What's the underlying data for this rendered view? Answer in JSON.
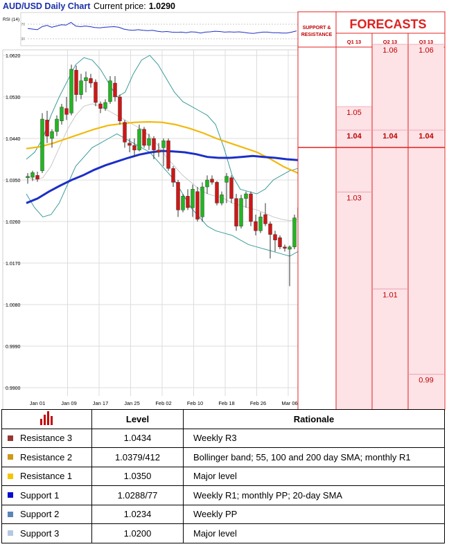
{
  "chart_title": "AUD/USD Daily Chart",
  "price_label": "Current price:",
  "price_value": "1.0290",
  "rsi_label": "RSI (14)",
  "rsi_ticks": [
    "70",
    "30"
  ],
  "chart_data": [
    {
      "type": "candlestick",
      "title": "AUD/USD Daily Chart",
      "ylim": [
        0.9875,
        1.0625
      ],
      "y_ticks": [
        "1.0620",
        "1.0530",
        "1.0440",
        "1.0350",
        "1.0260",
        "1.0170",
        "1.0080",
        "0.9990",
        "0.9900"
      ],
      "x_ticks": [
        "Jan 01",
        "Jan 09",
        "Jan 17",
        "Jan 25",
        "Feb 02",
        "Feb 10",
        "Feb 18",
        "Feb 26",
        "Mar 06"
      ],
      "grid": true,
      "candles": [
        {
          "o": 1.0355,
          "h": 1.0365,
          "l": 1.0342,
          "c": 1.0358
        },
        {
          "o": 1.0356,
          "h": 1.037,
          "l": 1.0348,
          "c": 1.0366
        },
        {
          "o": 1.036,
          "h": 1.0368,
          "l": 1.0346,
          "c": 1.0352
        },
        {
          "o": 1.037,
          "h": 1.0495,
          "l": 1.0365,
          "c": 1.0482
        },
        {
          "o": 1.048,
          "h": 1.05,
          "l": 1.043,
          "c": 1.0445
        },
        {
          "o": 1.044,
          "h": 1.046,
          "l": 1.042,
          "c": 1.0455
        },
        {
          "o": 1.0455,
          "h": 1.049,
          "l": 1.0445,
          "c": 1.0482
        },
        {
          "o": 1.0478,
          "h": 1.0515,
          "l": 1.047,
          "c": 1.0508
        },
        {
          "o": 1.0505,
          "h": 1.053,
          "l": 1.048,
          "c": 1.0492
        },
        {
          "o": 1.0495,
          "h": 1.06,
          "l": 1.049,
          "c": 1.059
        },
        {
          "o": 1.0588,
          "h": 1.0598,
          "l": 1.052,
          "c": 1.0535
        },
        {
          "o": 1.0535,
          "h": 1.058,
          "l": 1.0525,
          "c": 1.0565
        },
        {
          "o": 1.0565,
          "h": 1.0585,
          "l": 1.054,
          "c": 1.0572
        },
        {
          "o": 1.057,
          "h": 1.058,
          "l": 1.055,
          "c": 1.056
        },
        {
          "o": 1.0562,
          "h": 1.0568,
          "l": 1.051,
          "c": 1.0518
        },
        {
          "o": 1.0515,
          "h": 1.052,
          "l": 1.0495,
          "c": 1.0505
        },
        {
          "o": 1.0505,
          "h": 1.0525,
          "l": 1.05,
          "c": 1.0518
        },
        {
          "o": 1.052,
          "h": 1.0575,
          "l": 1.0515,
          "c": 1.0565
        },
        {
          "o": 1.056,
          "h": 1.0575,
          "l": 1.052,
          "c": 1.053
        },
        {
          "o": 1.053,
          "h": 1.0535,
          "l": 1.047,
          "c": 1.0478
        },
        {
          "o": 1.0475,
          "h": 1.048,
          "l": 1.042,
          "c": 1.0432
        },
        {
          "o": 1.043,
          "h": 1.044,
          "l": 1.041,
          "c": 1.0425
        },
        {
          "o": 1.0425,
          "h": 1.044,
          "l": 1.04,
          "c": 1.0415
        },
        {
          "o": 1.0415,
          "h": 1.047,
          "l": 1.0412,
          "c": 1.046
        },
        {
          "o": 1.046,
          "h": 1.0465,
          "l": 1.042,
          "c": 1.0425
        },
        {
          "o": 1.0425,
          "h": 1.045,
          "l": 1.0415,
          "c": 1.044
        },
        {
          "o": 1.044,
          "h": 1.0445,
          "l": 1.0395,
          "c": 1.0415
        },
        {
          "o": 1.0415,
          "h": 1.043,
          "l": 1.04,
          "c": 1.041
        },
        {
          "o": 1.042,
          "h": 1.044,
          "l": 1.038,
          "c": 1.0435
        },
        {
          "o": 1.0435,
          "h": 1.044,
          "l": 1.037,
          "c": 1.0375
        },
        {
          "o": 1.0375,
          "h": 1.038,
          "l": 1.0335,
          "c": 1.0345
        },
        {
          "o": 1.0345,
          "h": 1.035,
          "l": 1.027,
          "c": 1.0285
        },
        {
          "o": 1.0285,
          "h": 1.032,
          "l": 1.028,
          "c": 1.0315
        },
        {
          "o": 1.0315,
          "h": 1.033,
          "l": 1.0285,
          "c": 1.029
        },
        {
          "o": 1.029,
          "h": 1.034,
          "l": 1.027,
          "c": 1.033
        },
        {
          "o": 1.0325,
          "h": 1.0335,
          "l": 1.026,
          "c": 1.0265
        },
        {
          "o": 1.027,
          "h": 1.0345,
          "l": 1.026,
          "c": 1.0335
        },
        {
          "o": 1.0335,
          "h": 1.036,
          "l": 1.032,
          "c": 1.035
        },
        {
          "o": 1.0352,
          "h": 1.036,
          "l": 1.034,
          "c": 1.0345
        },
        {
          "o": 1.0345,
          "h": 1.0348,
          "l": 1.0295,
          "c": 1.03
        },
        {
          "o": 1.03,
          "h": 1.0325,
          "l": 1.0295,
          "c": 1.0318
        },
        {
          "o": 1.0345,
          "h": 1.0365,
          "l": 1.03,
          "c": 1.0358
        },
        {
          "o": 1.0355,
          "h": 1.036,
          "l": 1.03,
          "c": 1.031
        },
        {
          "o": 1.031,
          "h": 1.032,
          "l": 1.024,
          "c": 1.025
        },
        {
          "o": 1.025,
          "h": 1.0318,
          "l": 1.0245,
          "c": 1.031
        },
        {
          "o": 1.031,
          "h": 1.0325,
          "l": 1.029,
          "c": 1.032
        },
        {
          "o": 1.032,
          "h": 1.0325,
          "l": 1.025,
          "c": 1.026
        },
        {
          "o": 1.026,
          "h": 1.0275,
          "l": 1.023,
          "c": 1.024
        },
        {
          "o": 1.024,
          "h": 1.028,
          "l": 1.0235,
          "c": 1.027
        },
        {
          "o": 1.0275,
          "h": 1.03,
          "l": 1.025,
          "c": 1.0255
        },
        {
          "o": 1.0255,
          "h": 1.026,
          "l": 1.018,
          "c": 1.0232
        },
        {
          "o": 1.0232,
          "h": 1.024,
          "l": 1.0195,
          "c": 1.022
        },
        {
          "o": 1.0225,
          "h": 1.023,
          "l": 1.02,
          "c": 1.0205
        },
        {
          "o": 1.0205,
          "h": 1.021,
          "l": 1.0195,
          "c": 1.0202
        },
        {
          "o": 1.02,
          "h": 1.0208,
          "l": 1.012,
          "c": 1.0205
        },
        {
          "o": 1.0205,
          "h": 1.0275,
          "l": 1.02,
          "c": 1.0268
        },
        {
          "o": 1.0268,
          "h": 1.0298,
          "l": 1.0262,
          "c": 1.029
        }
      ],
      "lines": [
        {
          "name": "Bollinger band",
          "color": "#3a9a9a",
          "values": [
            1.0395,
            1.041,
            1.044,
            1.049,
            1.053,
            1.0565,
            1.06,
            1.0615,
            1.061,
            1.059,
            1.056,
            1.053,
            1.054,
            1.058,
            1.061,
            1.062,
            1.06,
            1.057,
            1.054,
            1.052,
            1.051,
            1.05,
            1.049,
            1.047,
            1.042,
            1.036,
            1.033,
            1.0325,
            1.032,
            1.033,
            1.035,
            1.036,
            1.037,
            1.0375
          ]
        },
        {
          "name": "Bollinger band",
          "color": "#3a9a9a",
          "values": [
            1.032,
            1.029,
            1.027,
            1.0275,
            1.03,
            1.034,
            1.038,
            1.04,
            1.042,
            1.043,
            1.044,
            1.045,
            1.044,
            1.043,
            1.042,
            1.041,
            1.039,
            1.037,
            1.035,
            1.032,
            1.029,
            1.027,
            1.025,
            1.024,
            1.0235,
            1.023,
            1.022,
            1.021,
            1.0205,
            1.02,
            1.0195,
            1.019,
            1.0185,
            1.0195
          ]
        },
        {
          "name": "20-day SMA",
          "color": "#c8c8c8",
          "values": [
            1.0358,
            1.035,
            1.0355,
            1.038,
            1.042,
            1.046,
            1.049,
            1.051,
            1.0515,
            1.051,
            1.05,
            1.049,
            1.048,
            1.047,
            1.046,
            1.0445,
            1.0425,
            1.04,
            1.038,
            1.036,
            1.0345,
            1.033,
            1.032,
            1.0315,
            1.031,
            1.03,
            1.0295,
            1.029,
            1.0285,
            1.0278,
            1.027,
            1.0265,
            1.0262,
            1.0265
          ]
        },
        {
          "name": "55-day SMA",
          "color": "#f2b80a",
          "values": [
            1.0418,
            1.0422,
            1.043,
            1.044,
            1.045,
            1.046,
            1.0468,
            1.0472,
            1.0475,
            1.0476,
            1.0475,
            1.047,
            1.0462,
            1.0452,
            1.044,
            1.043,
            1.042,
            1.041,
            1.0395,
            1.0378,
            1.0365
          ]
        },
        {
          "name": "100-day SMA",
          "color": "#1c2fc8",
          "values": [
            1.03,
            1.031,
            1.0325,
            1.0338,
            1.035,
            1.036,
            1.0372,
            1.0382,
            1.039,
            1.0398,
            1.0405,
            1.041,
            1.0413,
            1.0412,
            1.041,
            1.0406,
            1.04,
            1.0398,
            1.0398,
            1.04,
            1.0402,
            1.04,
            1.0398,
            1.0395,
            1.0393
          ]
        }
      ],
      "levels": [
        {
          "label": "1.0434",
          "value": 1.0434,
          "color": "#6a2a4a"
        },
        {
          "label": "1.0379",
          "value": 1.0379,
          "color": "#f2d27a"
        },
        {
          "label": "1.0350",
          "value": 1.035,
          "color": "#f5c400"
        },
        {
          "label": "1.0277",
          "value": 1.0277,
          "color": "#0a14a0"
        },
        {
          "label": "1.0234",
          "value": 1.0234,
          "color": "#2a6a9a"
        },
        {
          "label": "1.0200",
          "value": 1.02,
          "color": "#8ab4c8"
        }
      ],
      "rsi": [
        52,
        50,
        48,
        58,
        62,
        56,
        60,
        64,
        63,
        72,
        60,
        58,
        60,
        58,
        55,
        54,
        56,
        57,
        58,
        56,
        50,
        47,
        46,
        48,
        46,
        45,
        46,
        43,
        41,
        42,
        40,
        39,
        40,
        38,
        41,
        40,
        37,
        40,
        41,
        43,
        42,
        40,
        41,
        40,
        41,
        39,
        37,
        36,
        38,
        40,
        40,
        38,
        38,
        37,
        37,
        40,
        44
      ]
    },
    {
      "type": "table",
      "title": "FORECASTS",
      "side_label": [
        "SUPPORT &",
        "RESISTANCE"
      ],
      "columns": [
        "Q1 13",
        "Q2 13",
        "Q3 13"
      ],
      "cells": [
        {
          "col": 0,
          "label": "1.05",
          "value": 1.0485
        },
        {
          "col": 0,
          "label": "1.04",
          "value": 1.0434
        },
        {
          "col": 0,
          "label": "1.03",
          "value": 1.03
        },
        {
          "col": 1,
          "label": "1.06",
          "value": 1.062
        },
        {
          "col": 1,
          "label": "1.04",
          "value": 1.0434
        },
        {
          "col": 1,
          "label": "1.01",
          "value": 1.009
        },
        {
          "col": 2,
          "label": "1.06",
          "value": 1.062
        },
        {
          "col": 2,
          "label": "1.04",
          "value": 1.0434
        },
        {
          "col": 2,
          "label": "0.99",
          "value": 0.9905
        }
      ]
    }
  ],
  "levels_table": {
    "headers": [
      "Level",
      "Rationale"
    ],
    "rows": [
      {
        "name": "Resistance 3",
        "level": "1.0434",
        "rationale": "Weekly R3",
        "color": "#953735"
      },
      {
        "name": "Resistance 2",
        "level": "1.0379/412",
        "rationale": "Bollinger band; 55, 100 and 200 day SMA; monthly R1",
        "color": "#cc9a1a"
      },
      {
        "name": "Resistance 1",
        "level": "1.0350",
        "rationale": "Major level",
        "color": "#f5c400"
      },
      {
        "name": "Support 1",
        "level": "1.0288/77",
        "rationale": "Weekly R1; monthly PP; 20-day SMA",
        "color": "#0a0ad0"
      },
      {
        "name": "Support 2",
        "level": "1.0234",
        "rationale": "Weekly PP",
        "color": "#5a86b8"
      },
      {
        "name": "Support 3",
        "level": "1.0200",
        "rationale": "Major level",
        "color": "#b4c8e0"
      }
    ]
  },
  "colors": {
    "up": "#22b622",
    "down": "#d01616",
    "red": "#e02020",
    "forecast_fill": "#fde2e6"
  }
}
